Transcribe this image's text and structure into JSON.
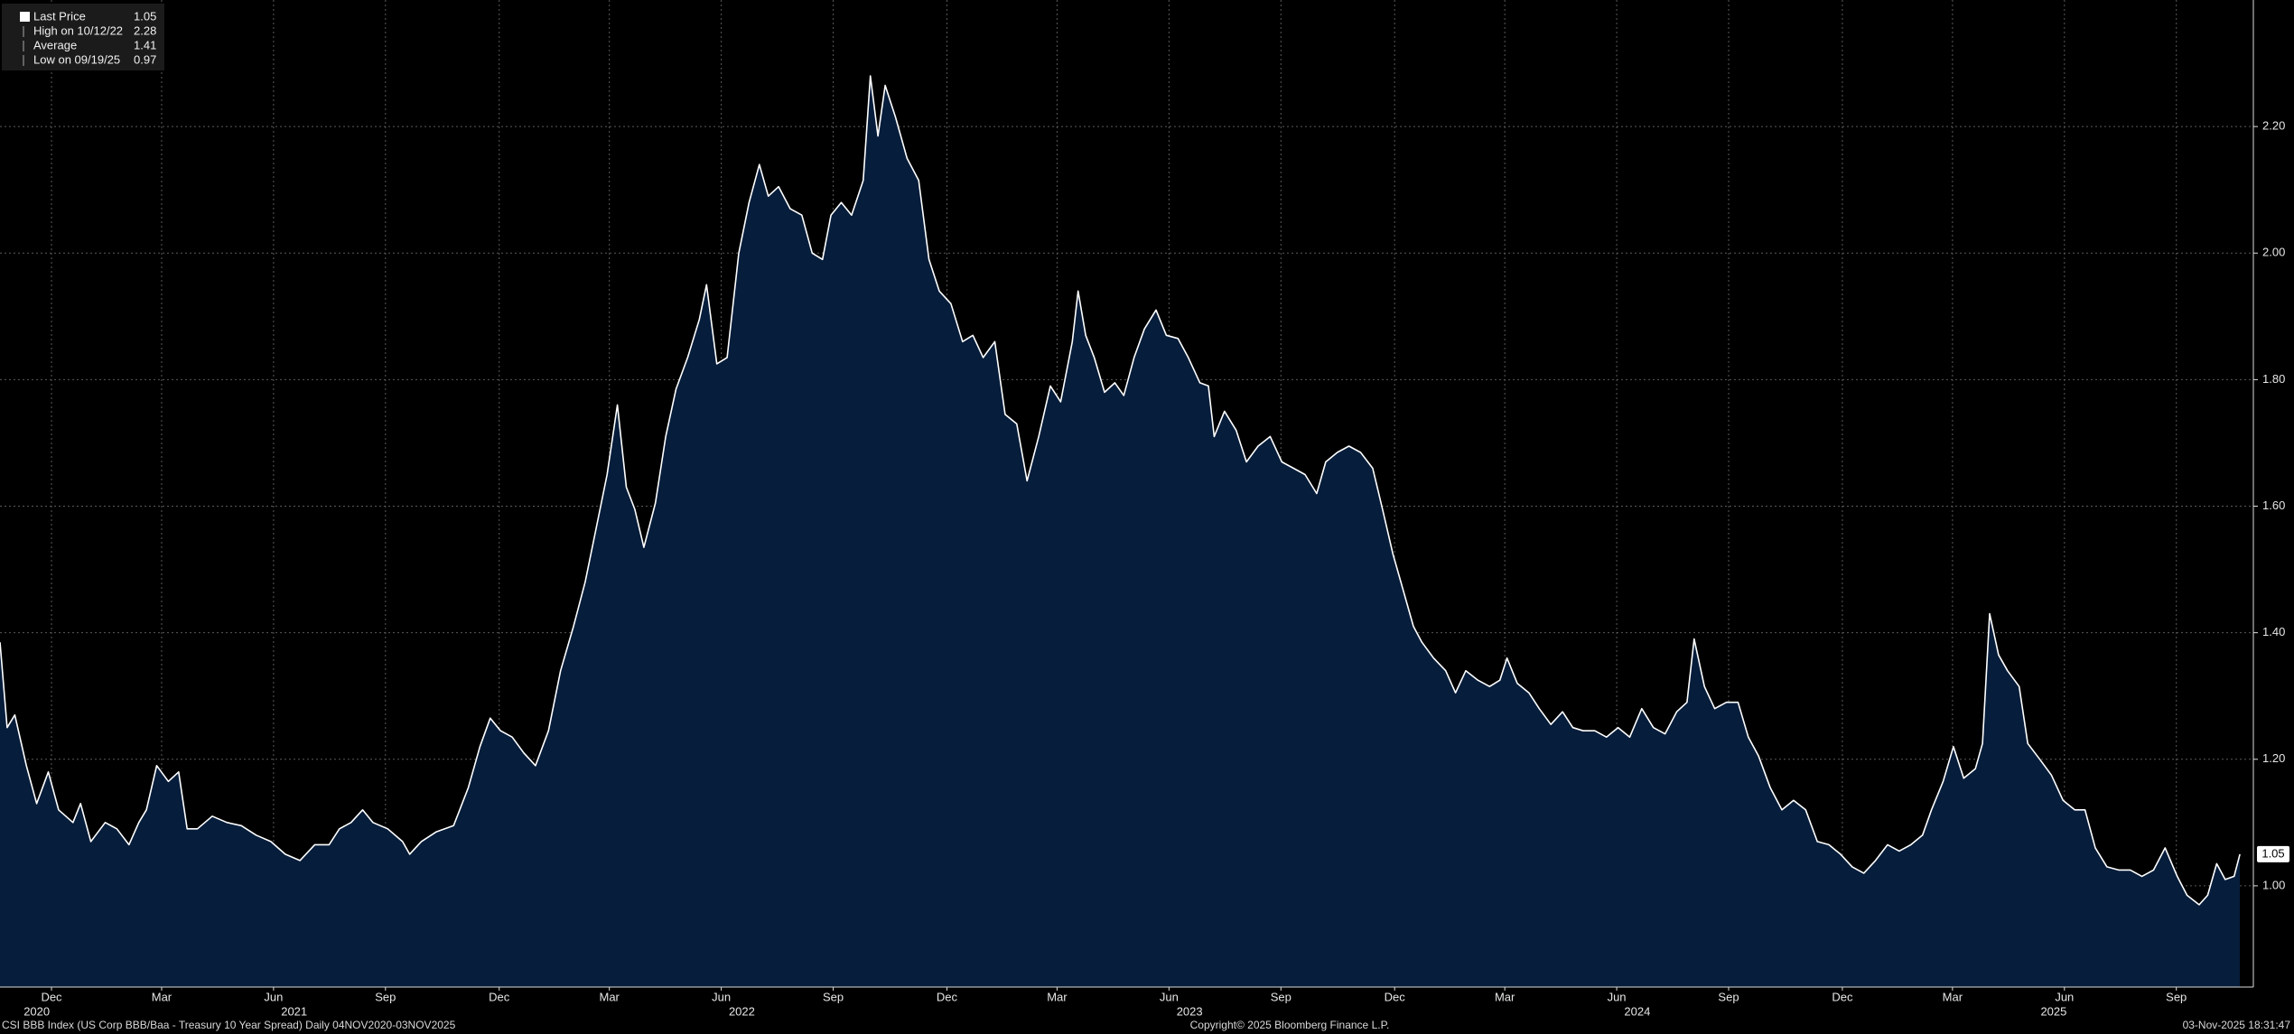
{
  "chart_data": {
    "type": "area",
    "line_color": "#ffffff",
    "fill_color": "#061d3b",
    "grid": true,
    "footer_left": "CSI BBB Index (US Corp BBB/Baa - Treasury 10 Year Spread) Daily 04NOV2020-03NOV2025",
    "footer_center": "Copyright© 2025 Bloomberg Finance L.P.",
    "footer_right": "03-Nov-2025 18:31:47",
    "legend": [
      {
        "label": "Last Price",
        "value": 1.05
      },
      {
        "label": "High on 10/12/22",
        "value": 2.28
      },
      {
        "label": "Average",
        "value": 1.41
      },
      {
        "label": "Low on 09/19/25",
        "value": 0.97
      }
    ],
    "last_price_tag": 1.05,
    "xlim": [
      2020.843,
      2025.876
    ],
    "ylim": [
      0.84,
      2.4
    ],
    "yticks": [
      {
        "value": 1.0,
        "label": "1.00"
      },
      {
        "value": 1.2,
        "label": "1.20"
      },
      {
        "value": 1.4,
        "label": "1.40"
      },
      {
        "value": 1.6,
        "label": "1.60"
      },
      {
        "value": 1.8,
        "label": "1.80"
      },
      {
        "value": 2.0,
        "label": "2.00"
      },
      {
        "value": 2.2,
        "label": "2.20"
      }
    ],
    "xticks": [
      {
        "value": 2020.958,
        "label": "Dec"
      },
      {
        "value": 2021.204,
        "label": "Mar"
      },
      {
        "value": 2021.454,
        "label": "Jun"
      },
      {
        "value": 2021.704,
        "label": "Sep"
      },
      {
        "value": 2021.958,
        "label": "Dec"
      },
      {
        "value": 2022.204,
        "label": "Mar"
      },
      {
        "value": 2022.454,
        "label": "Jun"
      },
      {
        "value": 2022.704,
        "label": "Sep"
      },
      {
        "value": 2022.958,
        "label": "Dec"
      },
      {
        "value": 2023.204,
        "label": "Mar"
      },
      {
        "value": 2023.454,
        "label": "Jun"
      },
      {
        "value": 2023.704,
        "label": "Sep"
      },
      {
        "value": 2023.958,
        "label": "Dec"
      },
      {
        "value": 2024.204,
        "label": "Mar"
      },
      {
        "value": 2024.454,
        "label": "Jun"
      },
      {
        "value": 2024.704,
        "label": "Sep"
      },
      {
        "value": 2024.958,
        "label": "Dec"
      },
      {
        "value": 2025.204,
        "label": "Mar"
      },
      {
        "value": 2025.454,
        "label": "Jun"
      },
      {
        "value": 2025.704,
        "label": "Sep"
      }
    ],
    "xticks_year": [
      {
        "value": 2020.925,
        "label": "2020"
      },
      {
        "value": 2021.5,
        "label": "2021"
      },
      {
        "value": 2022.5,
        "label": "2022"
      },
      {
        "value": 2023.5,
        "label": "2023"
      },
      {
        "value": 2024.5,
        "label": "2024"
      },
      {
        "value": 2025.43,
        "label": "2025"
      }
    ],
    "x": [
      2020.843,
      2020.859,
      2020.876,
      2020.902,
      2020.925,
      2020.951,
      2020.974,
      2021.006,
      2021.023,
      2021.046,
      2021.078,
      2021.104,
      2021.131,
      2021.153,
      2021.17,
      2021.193,
      2021.219,
      2021.242,
      2021.261,
      2021.284,
      2021.317,
      2021.35,
      2021.382,
      2021.415,
      2021.448,
      2021.48,
      2021.513,
      2021.546,
      2021.578,
      2021.601,
      2021.627,
      2021.653,
      2021.676,
      2021.709,
      2021.742,
      2021.758,
      2021.784,
      2021.817,
      2021.856,
      2021.889,
      2021.915,
      2021.938,
      2021.961,
      2021.987,
      2022.013,
      2022.039,
      2022.068,
      2022.095,
      2022.124,
      2022.15,
      2022.176,
      2022.199,
      2022.222,
      2022.242,
      2022.261,
      2022.281,
      2022.307,
      2022.33,
      2022.353,
      2022.379,
      2022.405,
      2022.421,
      2022.444,
      2022.467,
      2022.493,
      2022.516,
      2022.539,
      2022.559,
      2022.582,
      2022.608,
      2022.634,
      2022.657,
      2022.68,
      2022.699,
      2022.722,
      2022.745,
      2022.771,
      2022.787,
      2022.804,
      2022.82,
      2022.843,
      2022.869,
      2022.895,
      2022.918,
      2022.941,
      2022.967,
      2022.993,
      2023.016,
      2023.039,
      2023.065,
      2023.088,
      2023.114,
      2023.137,
      2023.163,
      2023.189,
      2023.212,
      2023.238,
      2023.251,
      2023.268,
      2023.287,
      2023.31,
      2023.333,
      2023.353,
      2023.376,
      2023.399,
      2023.425,
      2023.448,
      2023.474,
      2023.497,
      2023.523,
      2023.542,
      2023.555,
      2023.578,
      2023.604,
      2023.627,
      2023.653,
      2023.68,
      2023.706,
      2023.732,
      2023.758,
      2023.784,
      2023.804,
      2023.83,
      2023.856,
      2023.882,
      2023.909,
      2023.931,
      2023.954,
      2023.98,
      2024.0,
      2024.019,
      2024.045,
      2024.072,
      2024.094,
      2024.117,
      2024.144,
      2024.17,
      2024.193,
      2024.209,
      2024.232,
      2024.258,
      2024.281,
      2024.307,
      2024.333,
      2024.356,
      2024.379,
      2024.405,
      2024.431,
      2024.457,
      2024.483,
      2024.51,
      2024.536,
      2024.562,
      2024.588,
      2024.611,
      2024.627,
      2024.65,
      2024.673,
      2024.699,
      2024.725,
      2024.748,
      2024.771,
      2024.797,
      2024.823,
      2024.849,
      2024.876,
      2024.902,
      2024.928,
      2024.954,
      2024.98,
      2025.006,
      2025.032,
      2025.059,
      2025.085,
      2025.111,
      2025.137,
      2025.157,
      2025.183,
      2025.206,
      2025.229,
      2025.255,
      2025.271,
      2025.287,
      2025.307,
      2025.327,
      2025.353,
      2025.372,
      2025.399,
      2025.425,
      2025.451,
      2025.477,
      2025.5,
      2025.523,
      2025.549,
      2025.575,
      2025.601,
      2025.627,
      2025.653,
      2025.679,
      2025.706,
      2025.728,
      2025.755,
      2025.774,
      2025.794,
      2025.813,
      2025.833,
      2025.846
    ],
    "values": [
      1.385,
      1.25,
      1.27,
      1.19,
      1.13,
      1.18,
      1.12,
      1.1,
      1.13,
      1.07,
      1.1,
      1.09,
      1.065,
      1.1,
      1.12,
      1.19,
      1.165,
      1.18,
      1.09,
      1.09,
      1.11,
      1.1,
      1.095,
      1.08,
      1.07,
      1.05,
      1.04,
      1.065,
      1.065,
      1.09,
      1.1,
      1.12,
      1.1,
      1.09,
      1.07,
      1.05,
      1.07,
      1.085,
      1.095,
      1.155,
      1.22,
      1.265,
      1.245,
      1.235,
      1.21,
      1.19,
      1.245,
      1.34,
      1.41,
      1.48,
      1.57,
      1.65,
      1.76,
      1.63,
      1.595,
      1.535,
      1.605,
      1.71,
      1.785,
      1.835,
      1.895,
      1.95,
      1.825,
      1.835,
      2.0,
      2.08,
      2.14,
      2.09,
      2.105,
      2.07,
      2.06,
      2.0,
      1.99,
      2.06,
      2.08,
      2.06,
      2.115,
      2.28,
      2.185,
      2.265,
      2.215,
      2.15,
      2.115,
      1.99,
      1.94,
      1.92,
      1.86,
      1.87,
      1.835,
      1.86,
      1.745,
      1.73,
      1.64,
      1.71,
      1.79,
      1.765,
      1.86,
      1.94,
      1.87,
      1.835,
      1.78,
      1.795,
      1.775,
      1.835,
      1.88,
      1.91,
      1.87,
      1.865,
      1.835,
      1.795,
      1.79,
      1.71,
      1.75,
      1.72,
      1.67,
      1.695,
      1.71,
      1.67,
      1.66,
      1.65,
      1.62,
      1.67,
      1.685,
      1.695,
      1.685,
      1.66,
      1.595,
      1.525,
      1.46,
      1.41,
      1.385,
      1.36,
      1.34,
      1.305,
      1.34,
      1.325,
      1.315,
      1.325,
      1.36,
      1.32,
      1.305,
      1.28,
      1.255,
      1.275,
      1.25,
      1.245,
      1.245,
      1.235,
      1.25,
      1.235,
      1.28,
      1.25,
      1.24,
      1.275,
      1.29,
      1.39,
      1.315,
      1.28,
      1.29,
      1.29,
      1.235,
      1.205,
      1.155,
      1.12,
      1.135,
      1.12,
      1.07,
      1.065,
      1.05,
      1.03,
      1.02,
      1.04,
      1.065,
      1.055,
      1.065,
      1.08,
      1.12,
      1.165,
      1.22,
      1.17,
      1.185,
      1.225,
      1.43,
      1.365,
      1.34,
      1.315,
      1.225,
      1.2,
      1.175,
      1.135,
      1.12,
      1.12,
      1.06,
      1.03,
      1.025,
      1.025,
      1.015,
      1.025,
      1.06,
      1.015,
      0.985,
      0.97,
      0.985,
      1.035,
      1.01,
      1.015,
      1.05
    ]
  }
}
